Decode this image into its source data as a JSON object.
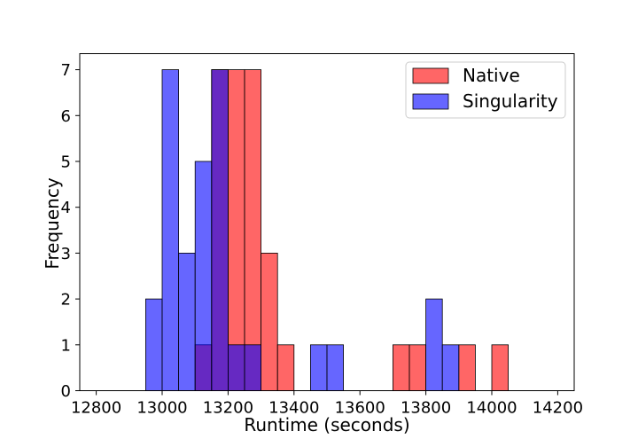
{
  "chart_data": {
    "type": "histogram",
    "xlabel": "Runtime (seconds)",
    "ylabel": "Frequency",
    "xlim": [
      12750,
      14250
    ],
    "ylim": [
      0,
      7.35
    ],
    "xticks": [
      12800,
      13000,
      13200,
      13400,
      13600,
      13800,
      14000,
      14200
    ],
    "yticks": [
      0,
      1,
      2,
      3,
      4,
      5,
      6,
      7
    ],
    "grid": false,
    "legend_position": "top-right",
    "series": [
      {
        "name": "Native",
        "color": "#ff0000",
        "alpha": 0.6,
        "bins": [
          {
            "x0": 13100,
            "x1": 13150,
            "count": 1
          },
          {
            "x0": 13150,
            "x1": 13200,
            "count": 7
          },
          {
            "x0": 13200,
            "x1": 13250,
            "count": 7
          },
          {
            "x0": 13250,
            "x1": 13300,
            "count": 7
          },
          {
            "x0": 13300,
            "x1": 13350,
            "count": 3
          },
          {
            "x0": 13350,
            "x1": 13400,
            "count": 1
          },
          {
            "x0": 13700,
            "x1": 13750,
            "count": 1
          },
          {
            "x0": 13750,
            "x1": 13800,
            "count": 1
          },
          {
            "x0": 13900,
            "x1": 13950,
            "count": 1
          },
          {
            "x0": 14000,
            "x1": 14050,
            "count": 1
          }
        ]
      },
      {
        "name": "Singularity",
        "color": "#0000ff",
        "alpha": 0.6,
        "bins": [
          {
            "x0": 12950,
            "x1": 13000,
            "count": 2
          },
          {
            "x0": 13000,
            "x1": 13050,
            "count": 7
          },
          {
            "x0": 13050,
            "x1": 13100,
            "count": 3
          },
          {
            "x0": 13100,
            "x1": 13150,
            "count": 5
          },
          {
            "x0": 13150,
            "x1": 13200,
            "count": 7
          },
          {
            "x0": 13200,
            "x1": 13250,
            "count": 1
          },
          {
            "x0": 13250,
            "x1": 13300,
            "count": 1
          },
          {
            "x0": 13450,
            "x1": 13500,
            "count": 1
          },
          {
            "x0": 13500,
            "x1": 13550,
            "count": 1
          },
          {
            "x0": 13800,
            "x1": 13850,
            "count": 2
          },
          {
            "x0": 13850,
            "x1": 13900,
            "count": 1
          }
        ]
      }
    ]
  }
}
